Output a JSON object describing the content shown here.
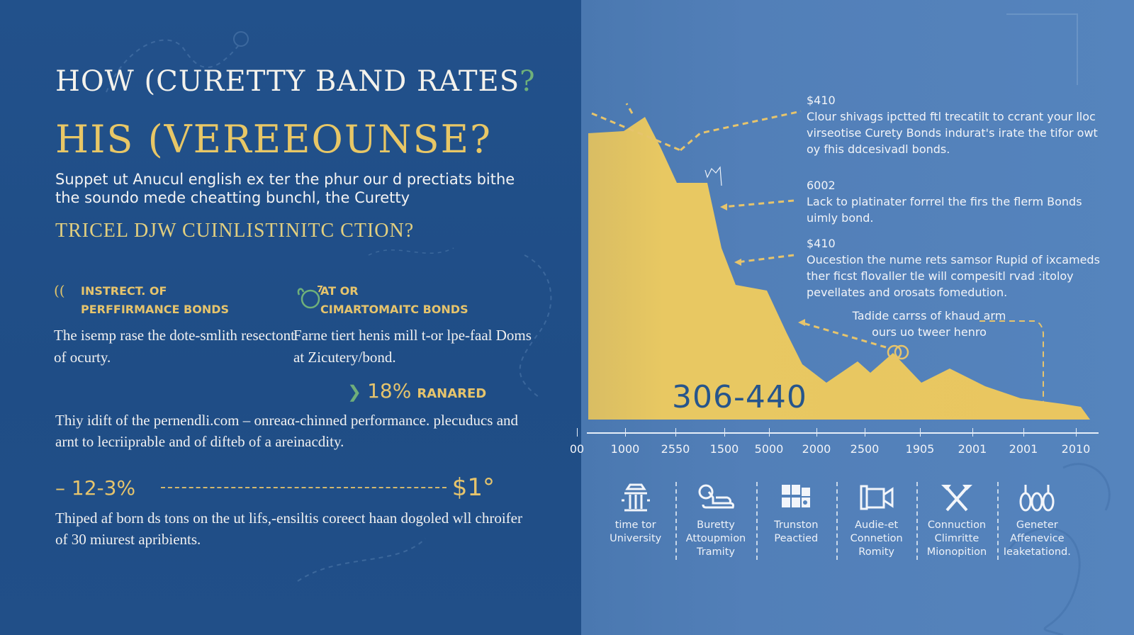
{
  "left_panel": {
    "title_line1": "HOW (CURETTY BAND RATES",
    "title_line1_q": "?",
    "title_line2": "HIS (VEREEOUNSE?",
    "subtitle": "Suppet ut Anucul english ex ter the phur our d prectiats bithe the soundo mede cheatting bunchl, the Curetty",
    "subheading": "TRICEL DJW CUINLISTINITC CTION?",
    "features": [
      {
        "icon": "swirl-icon",
        "icon_glyph": "((",
        "title_line1": "INSTRECT. OF",
        "title_line2": "PERFFIRMANCE BONDS",
        "description": "The isemp rase the dote-smlith resectont of ocurty."
      },
      {
        "icon": "ring-leaf-icon",
        "icon_glyph": "ʘ",
        "title_line1": "AT OR",
        "title_line2": "CIMARTOMAITC BONDS",
        "description": "Farne tiert henis mill t-or lpe-faal Doms at Zicutery/bond."
      }
    ],
    "stat": {
      "value": "18%",
      "label": "RANARED",
      "icon": "leaf-icon"
    },
    "paragraph1": "Thiy idift of the pernendli.com – onreaα-chinned performance. plecuducs and arnt to lecriiprable and of difteb of a areinacdity.",
    "range": {
      "start": "– 12-3%",
      "end": "$1°"
    },
    "paragraph2": "Thiped af born ds tons on the ut lifs,-ensiltis coreect haan dogoled wll chroifer of 30 miurest apribients."
  },
  "chart_panel": {
    "big_number": "306-440",
    "callouts": [
      {
        "value": "$410",
        "text": "Clour shivags ipctted ftl trecatilt to ccrant your lloc virseotise Curety Bonds indurat's irate the tifor owt oy fhis ddcesivadl bonds."
      },
      {
        "value": "6002",
        "text": "Lack to platinater forrrel the firs the flerm Bonds uimly bond."
      },
      {
        "value": "$410",
        "text": "Oucestion the nume rets samsor Rupid of ixcameds ther ficst flovaller tle will compesitl rvad :itoloy pevellates and orosats fomedution."
      },
      {
        "value": "",
        "text": "Tadide carrss of khaud arm ours uo tweer henro"
      }
    ],
    "icons": [
      {
        "icon": "building-icon",
        "label": "time tor University"
      },
      {
        "icon": "handshake-icon",
        "label": "Buretty Attoupmion Tramity"
      },
      {
        "icon": "grid-icon",
        "label": "Trunston Peactied"
      },
      {
        "icon": "camera-icon",
        "label": "Audie-et Connetion Romity"
      },
      {
        "icon": "crossed-tools-icon",
        "label": "Connuction Climritte Mionopition"
      },
      {
        "icon": "figures-icon",
        "label": "Geneter Affenevice Ieaketationd."
      }
    ]
  },
  "chart_data": {
    "type": "area",
    "title": "",
    "xlabel": "",
    "ylabel": "",
    "categories": [
      "00",
      "1000",
      "2550",
      "1500",
      "5000",
      "2000",
      "2500",
      "1905",
      "2001",
      "2001",
      "2010"
    ],
    "values": [
      420,
      390,
      340,
      190,
      150,
      90,
      70,
      55,
      40,
      30,
      20
    ],
    "annotation": "306-440",
    "grid": false,
    "fill_color": "#e8c660",
    "colors": {
      "left_bg": "#22518b",
      "right_bg": "#5584bd",
      "accent_gold": "#e6c46c",
      "accent_green": "#6fb07a"
    }
  }
}
